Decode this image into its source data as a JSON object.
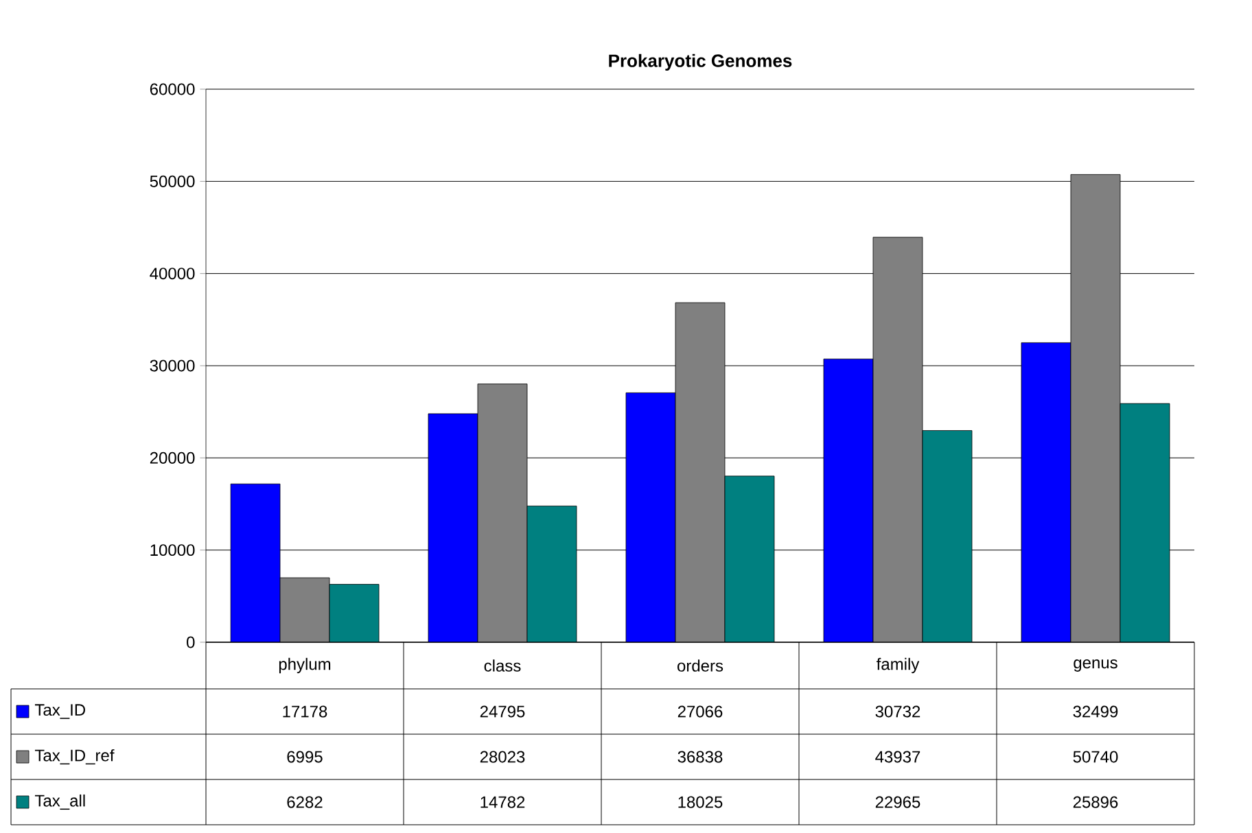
{
  "chart_data": {
    "type": "bar",
    "title": "Prokaryotic Genomes",
    "categories": [
      "phylum",
      "class",
      "orders",
      "family",
      "genus"
    ],
    "series": [
      {
        "name": "Tax_ID",
        "color": "#0000ff",
        "values": [
          17178,
          24795,
          27066,
          30732,
          32499
        ]
      },
      {
        "name": "Tax_ID_ref",
        "color": "#808080",
        "values": [
          6995,
          28023,
          36838,
          43937,
          50740
        ]
      },
      {
        "name": "Tax_all",
        "color": "#008080",
        "values": [
          6282,
          14782,
          18025,
          22965,
          25896
        ]
      }
    ],
    "ylim": [
      0,
      60000
    ],
    "yticks": [
      0,
      10000,
      20000,
      30000,
      40000,
      50000,
      60000
    ],
    "grid": "y",
    "legend": "bottom",
    "data_labels": true
  }
}
